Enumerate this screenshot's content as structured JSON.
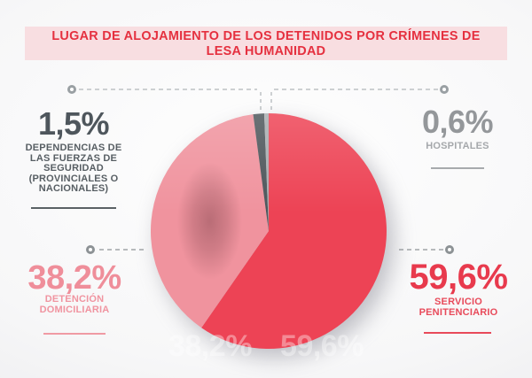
{
  "title": "LUGAR DE ALOJAMIENTO DE LOS DETENIDOS POR CRÍMENES DE LESA HUMANIDAD",
  "colors": {
    "banner_bg": "#f8dee1",
    "banner_text": "#e5303f",
    "red": "#ed4355",
    "pink": "#f0939e",
    "slate": "#4e565b",
    "gray": "#a9adb0",
    "background_edge": "#e0e0e2"
  },
  "chart_data": {
    "type": "pie",
    "title": "LUGAR DE ALOJAMIENTO DE LOS DETENIDOS POR CRÍMENES DE LESA HUMANIDAD",
    "start_angle_deg": 0,
    "direction": "clockwise",
    "slices": [
      {
        "label": "SERVICIO PENITENCIARIO",
        "value": 59.6,
        "display": "59,6%",
        "color": "#ed4355"
      },
      {
        "label": "DETENCIÓN DOMICILIARIA",
        "value": 38.2,
        "display": "38,2%",
        "color": "#f0939e"
      },
      {
        "label": "DEPENDENCIAS DE LAS FUERZAS DE SEGURIDAD (PROVINCIALES O NACIONALES)",
        "value": 1.5,
        "display": "1,5%",
        "color": "#4e565b"
      },
      {
        "label": "HOSPITALES",
        "value": 0.6,
        "display": "0,6%",
        "color": "#a9adb0"
      }
    ]
  },
  "callouts": {
    "top_left": {
      "value": "1,5%",
      "lines": [
        "DEPENDENCIAS DE",
        "LAS FUERZAS DE",
        "SEGURIDAD",
        "(PROVINCIALES O",
        "NACIONALES)"
      ]
    },
    "top_right": {
      "value": "0,6%",
      "lines": [
        "HOSPITALES"
      ]
    },
    "bottom_left": {
      "value": "38,2%",
      "lines": [
        "DETENCIÓN",
        "DOMICILIARIA"
      ]
    },
    "bottom_right": {
      "value": "59,6%",
      "lines": [
        "SERVICIO",
        "PENITENCIARIO"
      ]
    }
  }
}
